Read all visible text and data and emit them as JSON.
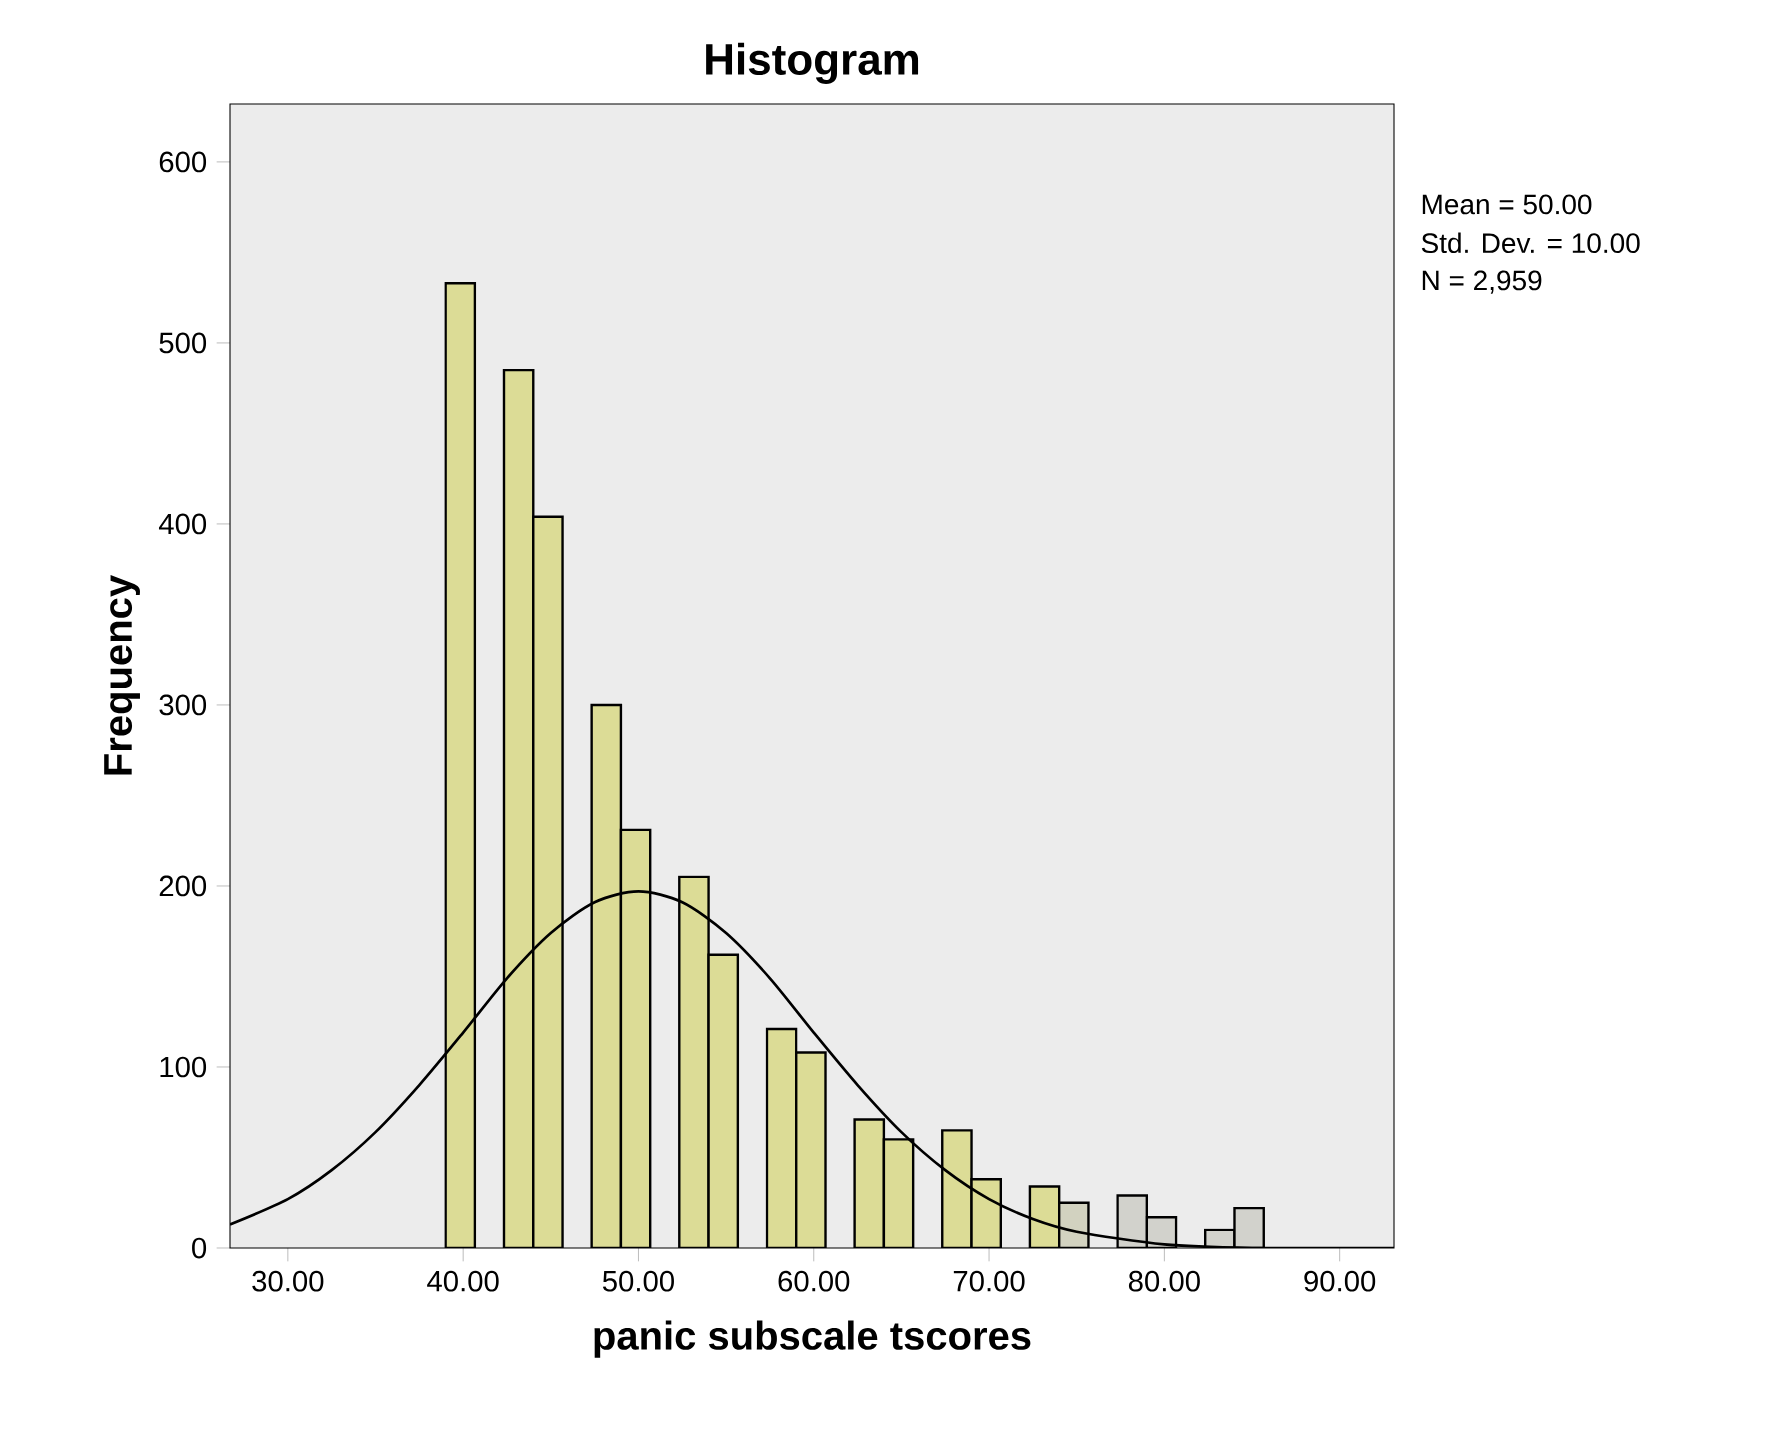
{
  "chart_data": {
    "type": "histogram",
    "title": "Histogram",
    "xlabel": "panic subscale tscores",
    "ylabel": "Frequency",
    "bins": [
      39.0,
      40.67,
      42.33,
      44.0,
      45.67,
      47.33,
      49.0,
      50.67,
      52.33,
      54.0,
      55.67,
      57.33,
      59.0,
      60.67,
      62.33,
      64.0,
      65.67,
      67.33,
      69.0,
      70.67,
      72.33,
      74.0,
      75.67,
      77.33,
      79.0,
      80.67,
      82.33,
      84.0,
      85.67
    ],
    "values": [
      533,
      0,
      485,
      404,
      0,
      300,
      231,
      0,
      205,
      162,
      0,
      121,
      108,
      0,
      71,
      60,
      0,
      65,
      38,
      0,
      34,
      25,
      0,
      29,
      17,
      0,
      10,
      22
    ],
    "colors": [
      "#dcdc96",
      "#dcdc96",
      "#dcdc96",
      "#dcdc96",
      "#dcdc96",
      "#dcdc96",
      "#dcdc96",
      "#dcdc96",
      "#dcdc96",
      "#dcdc96",
      "#dcdc96",
      "#dcdc96",
      "#dcdc96",
      "#dcdc96",
      "#dcdc96",
      "#dcdc96",
      "#dcdc96",
      "#dcdc96",
      "#dcdc96",
      "#dcdc96",
      "#dcdc96",
      "#d2d2c0",
      "#d2d2c0",
      "#d2d2cc",
      "#d2d2cc",
      "#d2d2cc",
      "#d2d2cc",
      "#d2d2cc"
    ],
    "series": [
      {
        "type": "line",
        "color": "#000000",
        "x": [
          26.7,
          30,
          32.5,
          35,
          37.5,
          40,
          42.5,
          45,
          47.5,
          50,
          52.5,
          55,
          57.5,
          60,
          62.5,
          65,
          67.5,
          70,
          72.5,
          75,
          80,
          85,
          90,
          93.1
        ],
        "values": [
          13,
          27,
          43,
          64,
          90,
          119,
          149,
          174,
          191,
          197,
          191,
          174,
          149,
          119,
          90,
          64,
          43,
          27,
          16,
          9,
          2,
          0,
          0,
          0
        ]
      }
    ],
    "xlim": [
      26.7,
      93.1
    ],
    "ylim": [
      0,
      632
    ],
    "xticks": [
      {
        "value": 30,
        "label": "30.00"
      },
      {
        "value": 40,
        "label": "40.00"
      },
      {
        "value": 50,
        "label": "50.00"
      },
      {
        "value": 60,
        "label": "60.00"
      },
      {
        "value": 70,
        "label": "70.00"
      },
      {
        "value": 80,
        "label": "80.00"
      },
      {
        "value": 90,
        "label": "90.00"
      }
    ],
    "yticks": [
      0,
      100,
      200,
      300,
      400,
      500,
      600
    ],
    "annotations": [
      "Mean = 50.00",
      "Std. Dev. = 10.00",
      "N = 2,959"
    ]
  }
}
